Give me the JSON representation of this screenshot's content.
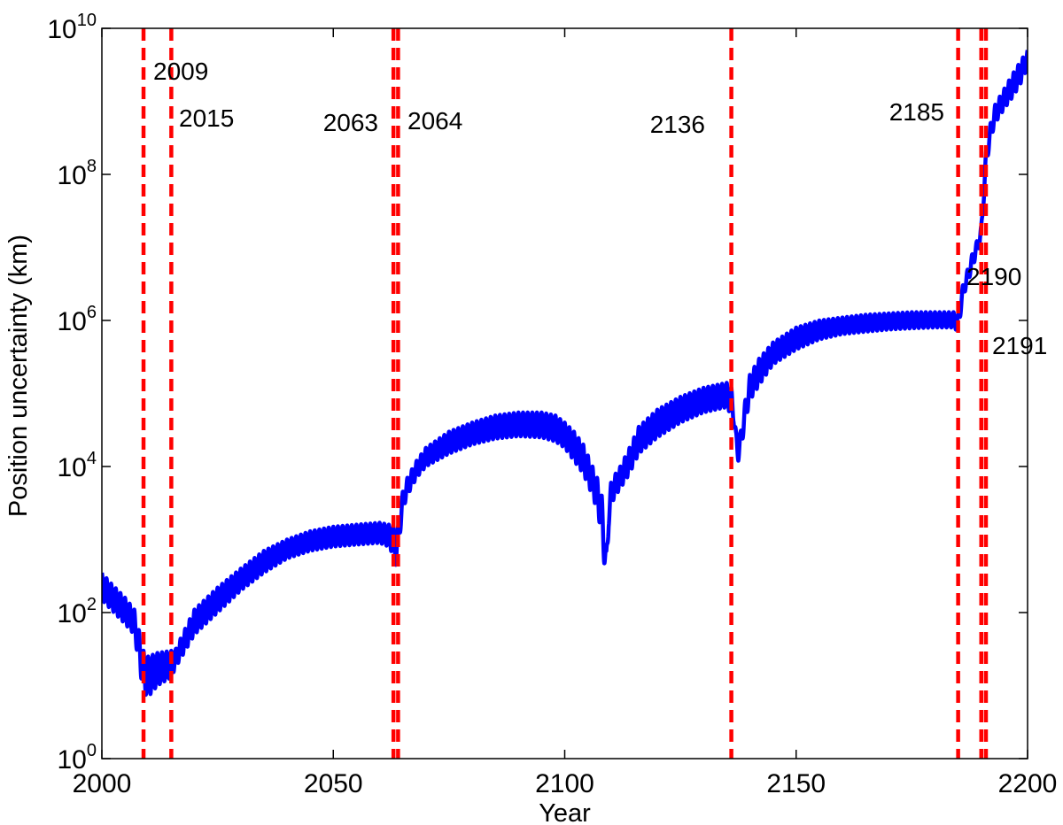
{
  "chart_data": {
    "type": "line",
    "title": "",
    "xlabel": "Year",
    "ylabel": "Position uncertainty (km)",
    "xlim": [
      2000,
      2200
    ],
    "ylim": [
      1,
      10000000000
    ],
    "yscale": "log",
    "grid": false,
    "xticks": [
      2000,
      2050,
      2100,
      2150,
      2200
    ],
    "xtick_labels": [
      "2000",
      "2050",
      "2100",
      "2150",
      "2200"
    ],
    "yticks": [
      1,
      100,
      10000,
      1000000,
      100000000,
      10000000000
    ],
    "ytick_labels": [
      {
        "base": "10",
        "exp": "0"
      },
      {
        "base": "10",
        "exp": "2"
      },
      {
        "base": "10",
        "exp": "4"
      },
      {
        "base": "10",
        "exp": "6"
      },
      {
        "base": "10",
        "exp": "8"
      },
      {
        "base": "10",
        "exp": "10"
      }
    ],
    "series": [
      {
        "color": "#0000ff",
        "oscillation_period_years": 1.0,
        "envelope": {
          "x": [
            2000,
            2002,
            2005,
            2007,
            2009,
            2010,
            2012,
            2015,
            2016,
            2018,
            2020,
            2025,
            2030,
            2035,
            2040,
            2045,
            2050,
            2055,
            2060,
            2062,
            2063,
            2063.5,
            2064,
            2065,
            2066,
            2068,
            2070,
            2075,
            2080,
            2085,
            2090,
            2095,
            2098,
            2100,
            2102,
            2104,
            2106,
            2107,
            2108,
            2108.5,
            2109,
            2109.5,
            2110,
            2111,
            2112,
            2114,
            2116,
            2120,
            2125,
            2130,
            2135,
            2136,
            2136.5,
            2137,
            2137.5,
            2138,
            2138.5,
            2139,
            2140,
            2142,
            2145,
            2150,
            2155,
            2160,
            2165,
            2170,
            2175,
            2180,
            2184,
            2185,
            2186,
            2188,
            2189,
            2190,
            2190.5,
            2191,
            2192,
            2193,
            2195,
            2197,
            2199,
            2200
          ],
          "upper": [
            350,
            250,
            160,
            110,
            30,
            25,
            28,
            30,
            32,
            60,
            110,
            220,
            400,
            700,
            1000,
            1300,
            1500,
            1600,
            1700,
            1600,
            1500,
            1100,
            1500,
            4500,
            7000,
            12000,
            18000,
            30000,
            40000,
            50000,
            55000,
            55000,
            50000,
            40000,
            30000,
            20000,
            10000,
            7000,
            4000,
            2000,
            700,
            3000,
            6000,
            8000,
            10000,
            18000,
            35000,
            60000,
            90000,
            120000,
            140000,
            120000,
            80000,
            30000,
            25000,
            30000,
            50000,
            80000,
            180000,
            300000,
            500000,
            800000,
            1000000,
            1100000,
            1200000,
            1250000,
            1300000,
            1300000,
            1300000,
            1200000,
            3000000,
            8000000,
            12000000,
            20000000,
            60000000,
            200000000,
            500000000,
            900000000,
            1500000000,
            2500000000,
            4000000000,
            5000000000
          ],
          "lower": [
            150,
            110,
            70,
            50,
            8,
            7,
            10,
            13,
            18,
            30,
            50,
            100,
            200,
            350,
            550,
            700,
            800,
            850,
            900,
            800,
            600,
            450,
            700,
            2500,
            4000,
            7000,
            10000,
            15000,
            20000,
            24000,
            26000,
            25000,
            22000,
            18000,
            12000,
            8000,
            4000,
            2500,
            1200,
            500,
            200,
            1500,
            3000,
            4000,
            5000,
            8000,
            15000,
            25000,
            40000,
            55000,
            65000,
            50000,
            40000,
            15000,
            12000,
            15000,
            25000,
            40000,
            80000,
            130000,
            250000,
            400000,
            550000,
            650000,
            700000,
            750000,
            780000,
            800000,
            800000,
            700000,
            2000000,
            5000000,
            8000000,
            12000000,
            40000000,
            120000000,
            300000000,
            500000000,
            800000000,
            1200000000,
            2000000000,
            3000000000
          ]
        }
      }
    ],
    "vlines": [
      {
        "x": 2009,
        "label": "2009",
        "color": "#ff0000"
      },
      {
        "x": 2015,
        "label": "2015",
        "color": "#ff0000"
      },
      {
        "x": 2063,
        "label": "2063",
        "color": "#ff0000"
      },
      {
        "x": 2064,
        "label": "2064",
        "color": "#ff0000"
      },
      {
        "x": 2136,
        "label": "2136",
        "color": "#ff0000"
      },
      {
        "x": 2185,
        "label": "2185",
        "color": "#ff0000"
      },
      {
        "x": 2190,
        "label": "2190",
        "color": "#ff0000"
      },
      {
        "x": 2191,
        "label": "2191",
        "color": "#ff0000"
      }
    ]
  }
}
